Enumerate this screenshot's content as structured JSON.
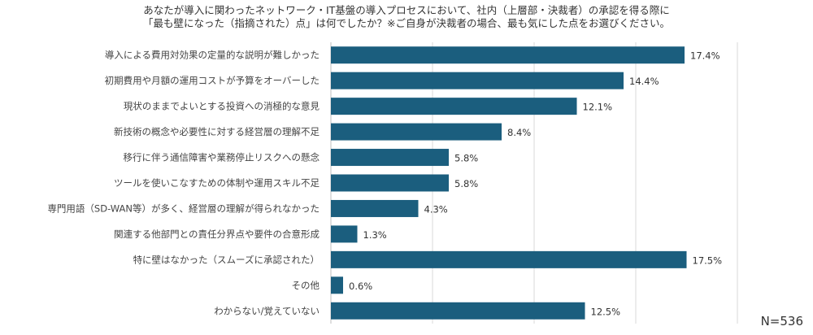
{
  "title_line1": "あなたが導入に関わったネットワーク・IT基盤の導入プロセスにおいて、社内（上層部・決裁者）の承認を得る際に",
  "title_line2": "「最も壁になった（指摘された）点」は何でしたか？※ご自身が決裁者の場合、最も気にした点をお選びください。",
  "sample_size": "N=536",
  "colors": {
    "bar": "#1b5e7e",
    "grid": "#d9d9d9",
    "axis": "#bfbfbf"
  },
  "chart_data": {
    "type": "bar",
    "orientation": "horizontal",
    "categories": [
      "導入による費用対効果の定量的な説明が難しかった",
      "初期費用や月額の運用コストが予算をオーバーした",
      "現状のままでよいとする投資への消極的な意見",
      "新技術の概念や必要性に対する経営層の理解不足",
      "移行に伴う通信障害や業務停止リスクへの懸念",
      "ツールを使いこなすための体制や運用スキル不足",
      "専門用語（SD-WAN等）が多く、経営層の理解が得られなかった",
      "関連する他部門との責任分界点や要件の合意形成",
      "特に壁はなかった（スムーズに承認された）",
      "その他",
      "わからない/覚えていない"
    ],
    "values": [
      17.4,
      14.4,
      12.1,
      8.4,
      5.8,
      5.8,
      4.3,
      1.3,
      17.5,
      0.6,
      12.5
    ],
    "value_labels": [
      "17.4%",
      "14.4%",
      "12.1%",
      "8.4%",
      "5.8%",
      "5.8%",
      "4.3%",
      "1.3%",
      "17.5%",
      "0.6%",
      "12.5%"
    ],
    "xlim": [
      0,
      20
    ],
    "grid": true
  }
}
